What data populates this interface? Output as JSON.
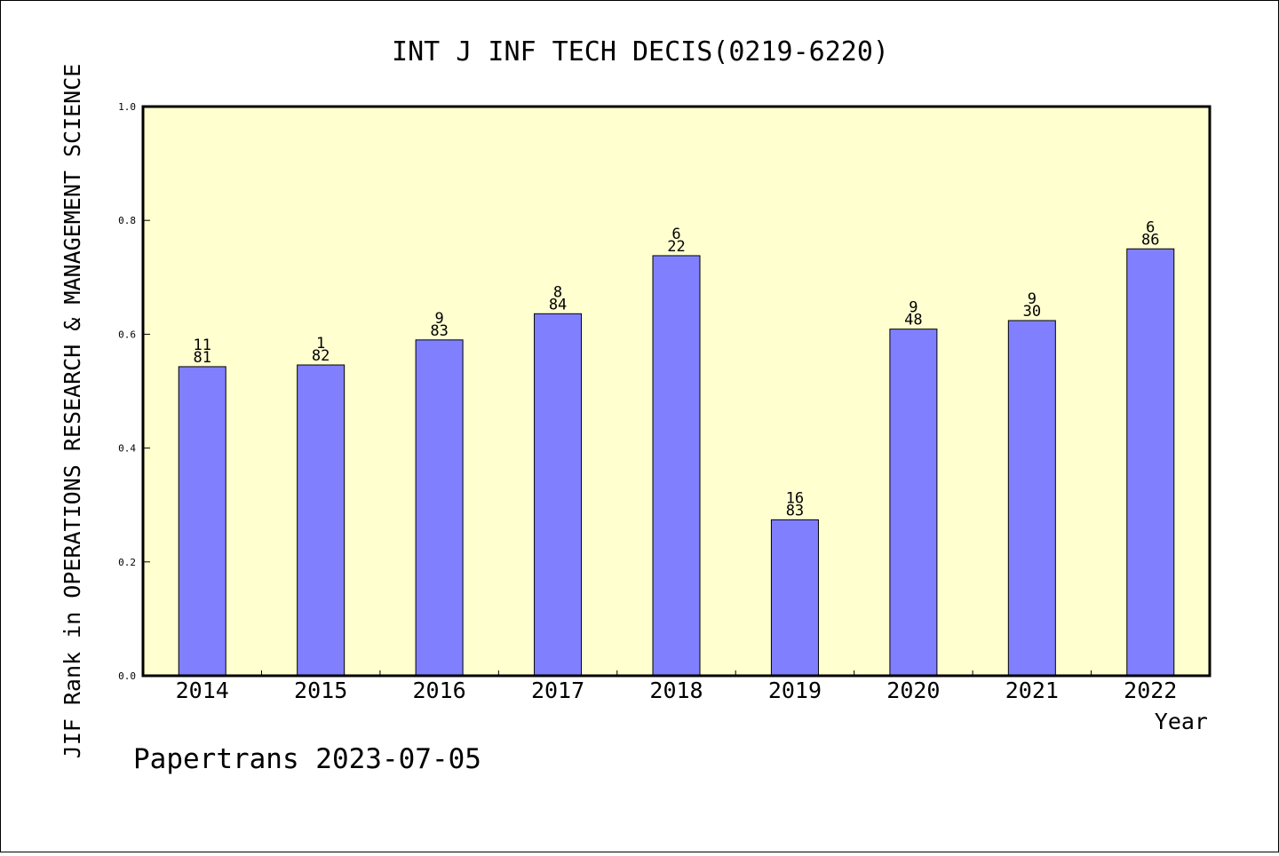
{
  "chart_data": {
    "type": "bar",
    "title": "INT J INF TECH DECIS(0219-6220)",
    "xlabel": "Year",
    "ylabel": "JIF Rank in OPERATIONS RESEARCH & MANAGEMENT SCIENCE",
    "ylim": [
      0,
      1.0
    ],
    "yticks": [
      "0.0",
      "0.2",
      "0.4",
      "0.6",
      "0.8",
      "1.0"
    ],
    "categories": [
      "2014",
      "2015",
      "2016",
      "2017",
      "2018",
      "2019",
      "2020",
      "2021",
      "2022"
    ],
    "values": [
      0.543,
      0.546,
      0.59,
      0.636,
      0.738,
      0.274,
      0.609,
      0.624,
      0.75
    ],
    "bar_labels_top": [
      "11",
      "1",
      "9",
      "8",
      "6",
      "16",
      "9",
      "9",
      "6"
    ],
    "bar_labels_bottom": [
      "81",
      "82",
      "83",
      "84",
      "22",
      "83",
      "48",
      "30",
      "86"
    ],
    "colors": {
      "plot_bg": "#ffffd0",
      "bar": "#8080ff"
    },
    "grid": false
  },
  "footer": "Papertrans 2023-07-05"
}
